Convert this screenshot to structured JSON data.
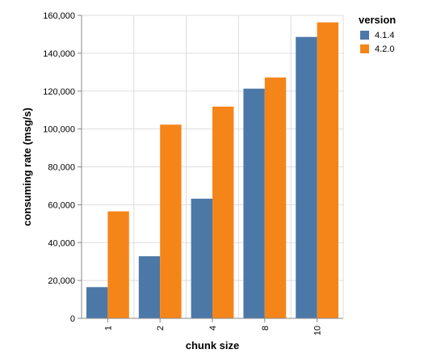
{
  "chart_data": {
    "type": "bar",
    "grouped": true,
    "categories": [
      "1",
      "2",
      "4",
      "8",
      "10"
    ],
    "series": [
      {
        "name": "4.1.4",
        "color": "#4c78a8",
        "values": [
          16500,
          32800,
          63200,
          121300,
          148600
        ]
      },
      {
        "name": "4.2.0",
        "color": "#f58518",
        "values": [
          56500,
          102300,
          111800,
          127200,
          156300
        ]
      }
    ],
    "xlabel": "chunk size",
    "ylabel": "consuming rate (msg/s)",
    "ylim": [
      0,
      160000
    ],
    "yticks": [
      0,
      20000,
      40000,
      60000,
      80000,
      100000,
      120000,
      140000,
      160000
    ],
    "ytick_labels": [
      "0",
      "20,000",
      "40,000",
      "60,000",
      "80,000",
      "100,000",
      "120,000",
      "140,000",
      "160,000"
    ],
    "grid": true,
    "legend": {
      "title": "version",
      "placement": "top-right"
    }
  }
}
